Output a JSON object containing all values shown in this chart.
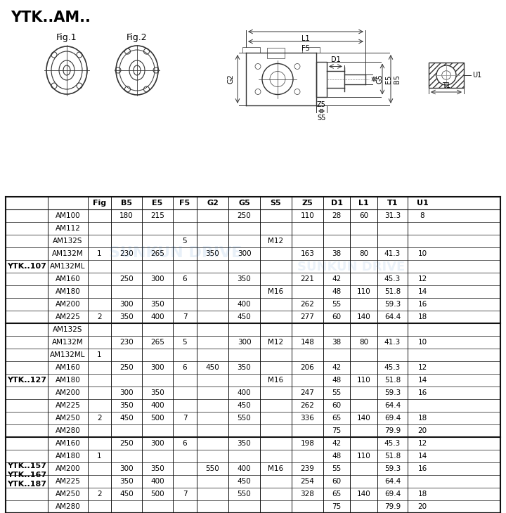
{
  "title": "YTK..AM..",
  "bg_color": "#f5f5f0",
  "col_names": [
    "",
    "",
    "Fig",
    "B5",
    "E5",
    "F5",
    "G2",
    "G5",
    "S5",
    "Z5",
    "D1",
    "L1",
    "T1",
    "U1"
  ],
  "ytk107_rows": [
    [
      "AM100",
      "",
      "180",
      "215",
      "",
      "",
      "250",
      "",
      "110",
      "28",
      "60",
      "31.3",
      "8"
    ],
    [
      "AM112",
      "",
      "",
      "",
      "",
      "",
      "",
      "",
      "",
      "",
      "",
      "",
      ""
    ],
    [
      "AM132S",
      "",
      "",
      "",
      "5",
      "",
      "",
      "M12",
      "",
      "",
      "",
      "",
      ""
    ],
    [
      "AM132M",
      "1",
      "230",
      "265",
      "",
      "350",
      "300",
      "",
      "163",
      "38",
      "80",
      "41.3",
      "10"
    ],
    [
      "AM132ML",
      "",
      "",
      "",
      "",
      "",
      "",
      "",
      "",
      "",
      "",
      "",
      ""
    ],
    [
      "AM160",
      "",
      "250",
      "300",
      "6",
      "",
      "350",
      "",
      "221",
      "42",
      "",
      "45.3",
      "12"
    ],
    [
      "AM180",
      "",
      "",
      "",
      "",
      "",
      "",
      "M16",
      "",
      "48",
      "110",
      "51.8",
      "14"
    ],
    [
      "AM200",
      "",
      "300",
      "350",
      "",
      "",
      "400",
      "",
      "262",
      "55",
      "",
      "59.3",
      "16"
    ],
    [
      "AM225",
      "2",
      "350",
      "400",
      "7",
      "",
      "450",
      "",
      "277",
      "60",
      "140",
      "64.4",
      "18"
    ]
  ],
  "ytk127_rows": [
    [
      "AM132S",
      "",
      "",
      "",
      "",
      "",
      "",
      "",
      "",
      "",
      "",
      "",
      ""
    ],
    [
      "AM132M",
      "",
      "230",
      "265",
      "5",
      "",
      "300",
      "M12",
      "148",
      "38",
      "80",
      "41.3",
      "10"
    ],
    [
      "AM132ML",
      "1",
      "",
      "",
      "",
      "",
      "",
      "",
      "",
      "",
      "",
      "",
      ""
    ],
    [
      "AM160",
      "",
      "250",
      "300",
      "6",
      "450",
      "350",
      "",
      "206",
      "42",
      "",
      "45.3",
      "12"
    ],
    [
      "AM180",
      "",
      "",
      "",
      "",
      "",
      "",
      "M16",
      "",
      "48",
      "110",
      "51.8",
      "14"
    ],
    [
      "AM200",
      "",
      "300",
      "350",
      "",
      "",
      "400",
      "",
      "247",
      "55",
      "",
      "59.3",
      "16"
    ],
    [
      "AM225",
      "",
      "350",
      "400",
      "",
      "",
      "450",
      "",
      "262",
      "60",
      "",
      "64.4",
      ""
    ],
    [
      "AM250",
      "2",
      "450",
      "500",
      "7",
      "",
      "550",
      "",
      "336",
      "65",
      "140",
      "69.4",
      "18"
    ],
    [
      "AM280",
      "",
      "",
      "",
      "",
      "",
      "",
      "",
      "",
      "75",
      "",
      "79.9",
      "20"
    ]
  ],
  "ytk157_rows": [
    [
      "AM160",
      "",
      "250",
      "300",
      "6",
      "",
      "350",
      "",
      "198",
      "42",
      "",
      "45.3",
      "12"
    ],
    [
      "AM180",
      "1",
      "",
      "",
      "",
      "",
      "",
      "",
      "",
      "48",
      "110",
      "51.8",
      "14"
    ],
    [
      "AM200",
      "",
      "300",
      "350",
      "",
      "550",
      "400",
      "M16",
      "239",
      "55",
      "",
      "59.3",
      "16"
    ],
    [
      "AM225",
      "",
      "350",
      "400",
      "",
      "",
      "450",
      "",
      "254",
      "60",
      "",
      "64.4",
      ""
    ],
    [
      "AM250",
      "2",
      "450",
      "500",
      "7",
      "",
      "550",
      "",
      "328",
      "65",
      "140",
      "69.4",
      "18"
    ],
    [
      "AM280",
      "",
      "",
      "",
      "",
      "",
      "",
      "",
      "",
      "75",
      "",
      "79.9",
      "20"
    ]
  ]
}
